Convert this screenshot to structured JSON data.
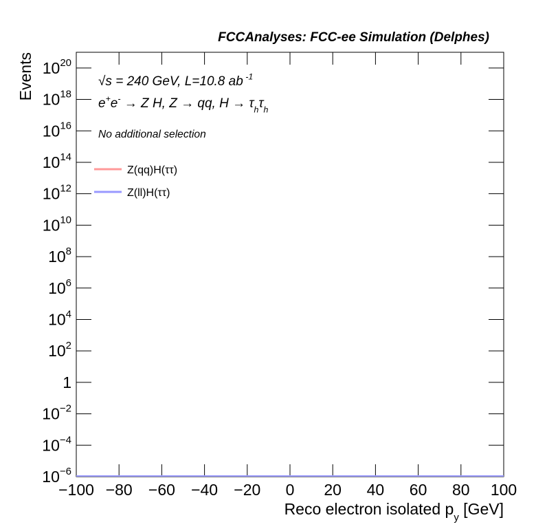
{
  "chart_data": {
    "type": "line",
    "title": "FCCAnalyses: FCC-ee Simulation (Delphes)",
    "x_label": [
      {
        "text": "Reco electron isolated p"
      },
      {
        "text": "y",
        "pos": "sub"
      },
      {
        "text": " [GeV]"
      }
    ],
    "y_label": "Events",
    "annotations": [
      [
        {
          "text": "√s = 240 GeV, L=10.8 ab"
        },
        {
          "text": " -1",
          "pos": "sup"
        }
      ],
      [
        {
          "text": "e"
        },
        {
          "text": "+",
          "pos": "sup"
        },
        {
          "text": "e"
        },
        {
          "text": "-",
          "pos": "sup"
        },
        {
          "text": " → Z H, Z  → qq, H  → τ"
        },
        {
          "text": "h",
          "pos": "sub"
        },
        {
          "text": "τ"
        },
        {
          "text": "h",
          "pos": "sub"
        }
      ],
      [
        {
          "text": "No additional selection",
          "size": "small"
        }
      ]
    ],
    "series": [
      {
        "name": "Z(qq)H(ττ)",
        "color": "#ff9999"
      },
      {
        "name": "Z(ll)H(ττ)",
        "color": "#9999ff"
      }
    ],
    "log_y": true,
    "xlim": [
      -100,
      100
    ],
    "xticks": [
      {
        "value": -100,
        "label": "−100"
      },
      {
        "value": -80,
        "label": "−80"
      },
      {
        "value": -60,
        "label": "−60"
      },
      {
        "value": -40,
        "label": "−40"
      },
      {
        "value": -20,
        "label": "−20"
      },
      0,
      20,
      40,
      60,
      80,
      100
    ],
    "ylim": [
      1e-06,
      1e+21
    ],
    "yticks": [
      {
        "value": 1e-06,
        "label": "10",
        "exponent": "−6"
      },
      {
        "value": 0.0001,
        "label": "10",
        "exponent": "−4"
      },
      {
        "value": 0.01,
        "label": "10",
        "exponent": "−2"
      },
      1,
      {
        "value": 100.0,
        "label": "10",
        "exponent": "2"
      },
      {
        "value": 10000.0,
        "label": "10",
        "exponent": "4"
      },
      {
        "value": 1000000.0,
        "label": "10",
        "exponent": "6"
      },
      {
        "value": 100000000.0,
        "label": "10",
        "exponent": "8"
      },
      {
        "value": 10000000000.0,
        "label": "10",
        "exponent": "10"
      },
      {
        "value": 1000000000000.0,
        "label": "10",
        "exponent": "12"
      },
      {
        "value": 100000000000000.0,
        "label": "10",
        "exponent": "14"
      },
      {
        "value": 1e+16,
        "label": "10",
        "exponent": "16"
      },
      {
        "value": 1e+18,
        "label": "10",
        "exponent": "18"
      },
      {
        "value": 1e+20,
        "label": "10",
        "exponent": "20"
      }
    ]
  }
}
